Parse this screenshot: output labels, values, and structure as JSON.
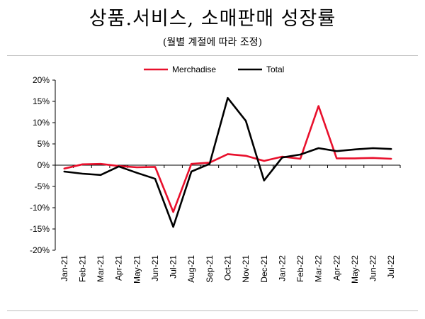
{
  "title": "상품.서비스, 소매판매 성장률",
  "subtitle": "(월별 계절에 따라 조정)",
  "chart_data": {
    "type": "line",
    "title": "상품.서비스, 소매판매 성장률",
    "subtitle": "(월별 계절에 따라 조정)",
    "xlabel": "",
    "ylabel": "",
    "x": [
      "Jan-21",
      "Feb-21",
      "Mar-21",
      "Apr-21",
      "May-21",
      "Jun-21",
      "Jul-21",
      "Aug-21",
      "Sep-21",
      "Oct-21",
      "Nov-21",
      "Dec-21",
      "Jan-22",
      "Feb-22",
      "Mar-22",
      "Apr-22",
      "May-22",
      "Jun-22",
      "Jul-22"
    ],
    "yticks": [
      "20%",
      "15%",
      "10%",
      "5%",
      "0%",
      "-5%",
      "-10%",
      "-15%",
      "-20%"
    ],
    "ylim": [
      -20,
      20
    ],
    "grid": false,
    "legend_position": "top-center",
    "series": [
      {
        "name": "Merchadise",
        "color": "#e8102c",
        "values": [
          -0.8,
          0.2,
          0.3,
          -0.2,
          -0.5,
          -0.4,
          -11.0,
          0.3,
          0.6,
          2.6,
          2.2,
          1.0,
          2.0,
          1.5,
          13.9,
          1.6,
          1.6,
          1.7,
          1.5
        ]
      },
      {
        "name": "Total",
        "color": "#000000",
        "values": [
          -1.5,
          -2.0,
          -2.3,
          -0.3,
          -1.8,
          -3.2,
          -14.5,
          -1.5,
          0.3,
          15.8,
          10.4,
          -3.6,
          1.8,
          2.5,
          4.0,
          3.3,
          3.7,
          4.0,
          3.8
        ]
      }
    ]
  }
}
